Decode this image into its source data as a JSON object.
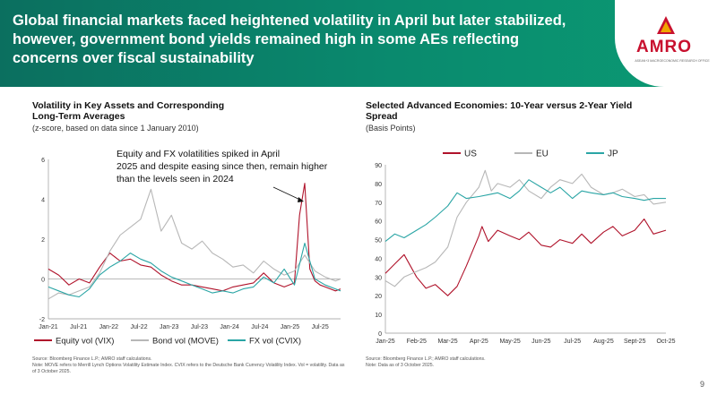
{
  "header": {
    "title": "Global financial markets faced heightened volatility in April but later stabilized, however, government bond yields remained high in some AEs reflecting concerns over fiscal sustainability",
    "logo": "AMRO",
    "logo_sub": "ASEAN+3 MACROECONOMIC RESEARCH OFFICE"
  },
  "page_number": "9",
  "left_chart": {
    "title": "Volatility in Key Assets and Corresponding Long-Term Averages",
    "subtitle": "(z-score, based on data since 1 January 2010)",
    "annotation": "Equity and FX volatilities spiked in April 2025 and despite easing since then, remain higher than the levels seen in 2024",
    "source": "Source: Bloomberg Finance L.P.; AMRO staff calculations.",
    "note": "Note: MOVE refers to Merrill Lynch Options Volatility Estimate Index. CVIX refers to the Deutsche Bank Currency Volatility Index. Vol = volatility. Data as of 3 October 2025."
  },
  "right_chart": {
    "title": "Selected Advanced Economies: 10-Year versus 2-Year Yield Spread",
    "subtitle": "(Basis Points)",
    "source": "Source: Bloomberg Finance L.P.; AMRO staff calculations.",
    "note": "Note: Data as of 3 October 2025."
  },
  "colors": {
    "us": "#b0132b",
    "eu": "#b7b7b7",
    "jp": "#2aa5a5",
    "header": "#0b7a64"
  },
  "chart_data": [
    {
      "type": "line",
      "ylim": [
        -2,
        6
      ],
      "yticks": [
        "-2",
        "0",
        "2",
        "4",
        "6"
      ],
      "xticks": [
        "Jan-21",
        "Jul-21",
        "Jan-22",
        "Jul-22",
        "Jan-23",
        "Jul-23",
        "Jan-24",
        "Jul-24",
        "Jan-25",
        "Jul-25"
      ],
      "x_range": [
        0,
        57
      ],
      "series": [
        {
          "name": "Equity vol (VIX)",
          "color": "#b0132b",
          "x": [
            0,
            2,
            4,
            6,
            8,
            10,
            12,
            14,
            16,
            18,
            20,
            22,
            24,
            26,
            28,
            30,
            32,
            34,
            36,
            38,
            40,
            42,
            44,
            46,
            48,
            49,
            50,
            51,
            52,
            53,
            54,
            55,
            56,
            57
          ],
          "values": [
            0.5,
            0.2,
            -0.3,
            0.0,
            -0.2,
            0.6,
            1.3,
            0.9,
            1.0,
            0.7,
            0.6,
            0.2,
            -0.1,
            -0.3,
            -0.3,
            -0.4,
            -0.5,
            -0.6,
            -0.4,
            -0.3,
            -0.2,
            0.3,
            -0.2,
            -0.4,
            -0.2,
            3.2,
            4.8,
            0.5,
            -0.1,
            -0.3,
            -0.4,
            -0.5,
            -0.6,
            -0.5
          ]
        },
        {
          "name": "Bond vol (MOVE)",
          "color": "#b7b7b7",
          "x": [
            0,
            2,
            4,
            6,
            8,
            10,
            12,
            14,
            16,
            18,
            20,
            22,
            24,
            26,
            28,
            30,
            32,
            34,
            36,
            38,
            40,
            42,
            44,
            46,
            48,
            50,
            52,
            54,
            56,
            57
          ],
          "values": [
            -1.0,
            -0.7,
            -0.8,
            -0.6,
            -0.4,
            0.3,
            1.4,
            2.2,
            2.6,
            3.0,
            4.5,
            2.4,
            3.2,
            1.8,
            1.5,
            1.9,
            1.3,
            1.0,
            0.6,
            0.7,
            0.3,
            0.9,
            0.5,
            0.2,
            0.4,
            1.2,
            0.4,
            0.1,
            -0.1,
            0.0
          ]
        },
        {
          "name": "FX vol (CVIX)",
          "color": "#2aa5a5",
          "x": [
            0,
            2,
            4,
            6,
            8,
            10,
            12,
            14,
            16,
            18,
            20,
            22,
            24,
            26,
            28,
            30,
            32,
            34,
            36,
            38,
            40,
            42,
            44,
            46,
            48,
            50,
            52,
            54,
            56,
            57
          ],
          "values": [
            -0.4,
            -0.6,
            -0.8,
            -0.9,
            -0.5,
            0.2,
            0.6,
            0.9,
            1.3,
            1.0,
            0.8,
            0.4,
            0.1,
            -0.1,
            -0.3,
            -0.5,
            -0.7,
            -0.6,
            -0.7,
            -0.5,
            -0.4,
            0.1,
            -0.2,
            0.5,
            -0.3,
            1.8,
            0.0,
            -0.3,
            -0.5,
            -0.6
          ]
        }
      ]
    },
    {
      "type": "line",
      "ylim": [
        0,
        90
      ],
      "yticks": [
        "0",
        "10",
        "20",
        "30",
        "40",
        "50",
        "60",
        "70",
        "80",
        "90"
      ],
      "xticks": [
        "Jan-25",
        "Feb-25",
        "Mar-25",
        "Apr-25",
        "May-25",
        "Jun-25",
        "Jul-25",
        "Aug-25",
        "Sept-25",
        "Oct-25"
      ],
      "x_range": [
        0,
        9
      ],
      "series": [
        {
          "name": "US",
          "color": "#b0132b",
          "x": [
            0,
            0.3,
            0.6,
            1.0,
            1.3,
            1.6,
            2.0,
            2.3,
            2.6,
            3.0,
            3.1,
            3.3,
            3.6,
            4.0,
            4.3,
            4.6,
            5.0,
            5.3,
            5.6,
            6.0,
            6.3,
            6.6,
            7.0,
            7.3,
            7.6,
            8.0,
            8.3,
            8.6,
            9.0
          ],
          "values": [
            32,
            37,
            42,
            30,
            24,
            26,
            20,
            25,
            36,
            52,
            57,
            49,
            55,
            52,
            50,
            54,
            47,
            46,
            50,
            48,
            53,
            48,
            54,
            57,
            52,
            55,
            61,
            53,
            55
          ]
        },
        {
          "name": "EU",
          "color": "#b7b7b7",
          "x": [
            0,
            0.3,
            0.6,
            1.0,
            1.3,
            1.6,
            2.0,
            2.3,
            2.6,
            3.0,
            3.2,
            3.4,
            3.6,
            4.0,
            4.3,
            4.6,
            5.0,
            5.3,
            5.6,
            6.0,
            6.3,
            6.6,
            7.0,
            7.3,
            7.6,
            8.0,
            8.3,
            8.6,
            9.0
          ],
          "values": [
            28,
            25,
            30,
            33,
            35,
            38,
            46,
            62,
            70,
            78,
            87,
            76,
            80,
            78,
            82,
            76,
            72,
            78,
            82,
            80,
            85,
            78,
            74,
            75,
            77,
            73,
            74,
            69,
            70
          ]
        },
        {
          "name": "JP",
          "color": "#2aa5a5",
          "x": [
            0,
            0.3,
            0.6,
            1.0,
            1.3,
            1.6,
            2.0,
            2.3,
            2.6,
            3.0,
            3.3,
            3.6,
            4.0,
            4.3,
            4.6,
            5.0,
            5.3,
            5.6,
            6.0,
            6.3,
            6.6,
            7.0,
            7.3,
            7.6,
            8.0,
            8.3,
            8.6,
            9.0
          ],
          "values": [
            49,
            53,
            51,
            55,
            58,
            62,
            68,
            75,
            72,
            73,
            74,
            75,
            72,
            76,
            82,
            78,
            75,
            78,
            72,
            76,
            75,
            74,
            75,
            73,
            72,
            71,
            72,
            72
          ]
        }
      ]
    }
  ]
}
